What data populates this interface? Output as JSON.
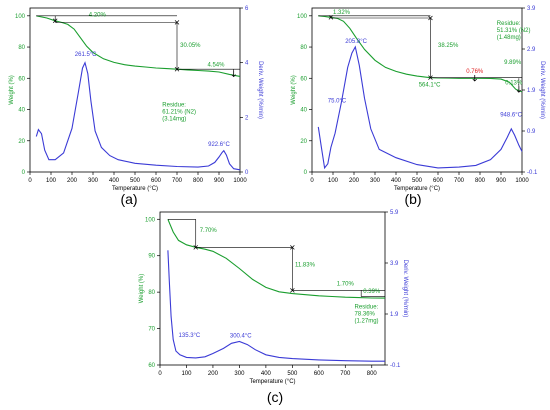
{
  "colors": {
    "weight": "#1a9e2e",
    "deriv": "#3b3bd6",
    "marker_red": "#e02020",
    "axis": "#000000",
    "panel_label": "#000000"
  },
  "chart_data": [
    {
      "type": "line",
      "panel_label": "(a)",
      "xlabel": "Temperature (°C)",
      "ylabel_left": "Weight (%)",
      "ylabel_right": "Deriv. Weight (%/min)",
      "xlim": [
        0,
        1000
      ],
      "ylim_left": [
        0,
        105
      ],
      "ylim_right": [
        0,
        6
      ],
      "xticks": [
        0,
        100,
        200,
        300,
        400,
        500,
        600,
        700,
        800,
        900,
        1000
      ],
      "yticks_left": [
        0,
        20,
        40,
        60,
        80,
        100
      ],
      "yticks_right": [
        0,
        2,
        4,
        6
      ],
      "ytick_labels_right": [
        "0",
        "2",
        "4",
        "6"
      ],
      "series": [
        {
          "axis": "left",
          "x": [
            30,
            80,
            120,
            150,
            180,
            210,
            240,
            270,
            300,
            350,
            400,
            450,
            500,
            550,
            600,
            650,
            700,
            750,
            800,
            850,
            900,
            950,
            1000
          ],
          "values": [
            100,
            98.6,
            96.8,
            95.8,
            94.5,
            91.5,
            86,
            80.5,
            76.5,
            72.5,
            70.2,
            68.7,
            67.8,
            67.2,
            66.6,
            66.2,
            65.8,
            65.4,
            65.0,
            64.6,
            64.0,
            62.5,
            61.2
          ]
        },
        {
          "axis": "right",
          "x": [
            30,
            40,
            55,
            70,
            90,
            120,
            160,
            200,
            230,
            250,
            262,
            275,
            290,
            310,
            340,
            380,
            420,
            500,
            600,
            700,
            800,
            850,
            880,
            900,
            915,
            923,
            935,
            950,
            970,
            1000
          ],
          "values": [
            1.3,
            1.55,
            1.4,
            0.8,
            0.45,
            0.45,
            0.7,
            1.6,
            2.9,
            3.8,
            4.0,
            3.6,
            2.6,
            1.5,
            0.9,
            0.6,
            0.45,
            0.32,
            0.25,
            0.2,
            0.18,
            0.22,
            0.35,
            0.55,
            0.72,
            0.78,
            0.62,
            0.3,
            0.12,
            0.08
          ]
        }
      ],
      "annotations": {
        "step_1": "4.20%",
        "step_2": "30.05%",
        "step_3": "4.54%",
        "peak_1": "261.5°C",
        "peak_2": "922.6°C",
        "residue": [
          "Residue:",
          "61.21% (N2)",
          "(3.14mg)"
        ]
      }
    },
    {
      "type": "line",
      "panel_label": "(b)",
      "xlabel": "Temperature (°C)",
      "ylabel_left": "Weight (%)",
      "ylabel_right": "Deriv. Weight (%/min)",
      "xlim": [
        0,
        1000
      ],
      "ylim_left": [
        0,
        105
      ],
      "ylim_right": [
        -0.1,
        3.9
      ],
      "xticks": [
        0,
        100,
        200,
        300,
        400,
        500,
        600,
        700,
        800,
        900,
        1000
      ],
      "yticks_left": [
        0,
        20,
        40,
        60,
        80,
        100
      ],
      "yticks_right": [
        -0.1,
        0.9,
        1.9,
        2.9,
        3.9
      ],
      "ytick_labels_right": [
        "-0.1",
        "0.9",
        "1.9",
        "2.9",
        "3.9"
      ],
      "series": [
        {
          "axis": "left",
          "x": [
            30,
            60,
            90,
            120,
            150,
            180,
            210,
            250,
            300,
            350,
            400,
            450,
            500,
            564,
            600,
            650,
            700,
            750,
            800,
            850,
            900,
            940,
            970,
            1000
          ],
          "values": [
            100,
            99.6,
            99.0,
            98.4,
            96.5,
            92,
            86,
            78.5,
            71.5,
            67,
            64.4,
            62.6,
            61.4,
            60.4,
            60.2,
            60.1,
            60.0,
            60.0,
            60.0,
            59.9,
            59.5,
            57.5,
            53,
            51.3
          ]
        },
        {
          "axis": "right",
          "x": [
            30,
            45,
            60,
            75,
            90,
            110,
            140,
            170,
            190,
            206,
            225,
            250,
            280,
            320,
            400,
            500,
            600,
            700,
            780,
            850,
            900,
            930,
            949,
            965,
            985,
            1000
          ],
          "values": [
            1.0,
            0.5,
            0.0,
            0.1,
            0.5,
            0.85,
            1.6,
            2.45,
            2.8,
            2.95,
            2.5,
            1.7,
            0.95,
            0.45,
            0.25,
            0.08,
            0.0,
            0.02,
            0.06,
            0.2,
            0.45,
            0.75,
            0.95,
            0.8,
            0.55,
            0.4
          ]
        }
      ],
      "annotations": {
        "step_1": "1.32%",
        "step_2": "38.25%",
        "step_3": "0.76%",
        "step_4": "9.89%",
        "step_5": "0.13%",
        "point_564": "564.1°C",
        "peak_1": "205.8°C",
        "peak_0": "75.0°C",
        "peak_2": "948.6°C",
        "residue": [
          "Residue:",
          "51.31% (N2)",
          "(1.48mg)"
        ]
      }
    },
    {
      "type": "line",
      "panel_label": "(c)",
      "xlabel": "Temperature (°C)",
      "ylabel_left": "Weight (%)",
      "ylabel_right": "Deriv. Weight (%/min)",
      "xlim": [
        0,
        850
      ],
      "ylim_left": [
        60,
        102
      ],
      "ylim_right": [
        -0.1,
        5.9
      ],
      "xticks": [
        0,
        100,
        200,
        300,
        400,
        500,
        600,
        700,
        800
      ],
      "yticks_left": [
        60,
        70,
        80,
        90,
        100
      ],
      "yticks_right": [
        -0.1,
        1.9,
        3.9,
        5.9
      ],
      "ytick_labels_right": [
        "-0.1",
        "1.9",
        "3.9",
        "5.9"
      ],
      "series": [
        {
          "axis": "left",
          "x": [
            30,
            50,
            70,
            100,
            135,
            170,
            200,
            250,
            300,
            350,
            400,
            450,
            500,
            550,
            600,
            650,
            700,
            750,
            800,
            850
          ],
          "values": [
            100,
            96.5,
            94.2,
            93.0,
            92.3,
            91.8,
            91.2,
            89.3,
            86.5,
            83.5,
            81.3,
            80.1,
            79.6,
            79.3,
            79.0,
            78.8,
            78.6,
            78.5,
            78.4,
            78.36
          ]
        },
        {
          "axis": "right",
          "x": [
            30,
            35,
            42,
            50,
            60,
            75,
            100,
            135,
            170,
            200,
            240,
            270,
            300,
            330,
            360,
            400,
            450,
            500,
            600,
            700,
            800,
            850
          ],
          "values": [
            4.4,
            3.2,
            1.8,
            0.9,
            0.45,
            0.3,
            0.2,
            0.18,
            0.22,
            0.35,
            0.55,
            0.75,
            0.82,
            0.7,
            0.5,
            0.3,
            0.2,
            0.15,
            0.1,
            0.07,
            0.05,
            0.05
          ]
        }
      ],
      "annotations": {
        "step_1": "7.70%",
        "step_2": "11.83%",
        "step_3": "1.70%",
        "step_4": "0.39%",
        "peak_1": "135.3°C",
        "peak_2": "300.4°C",
        "residue": [
          "Residue:",
          "78.36%",
          "(1.27mg)"
        ]
      }
    }
  ]
}
